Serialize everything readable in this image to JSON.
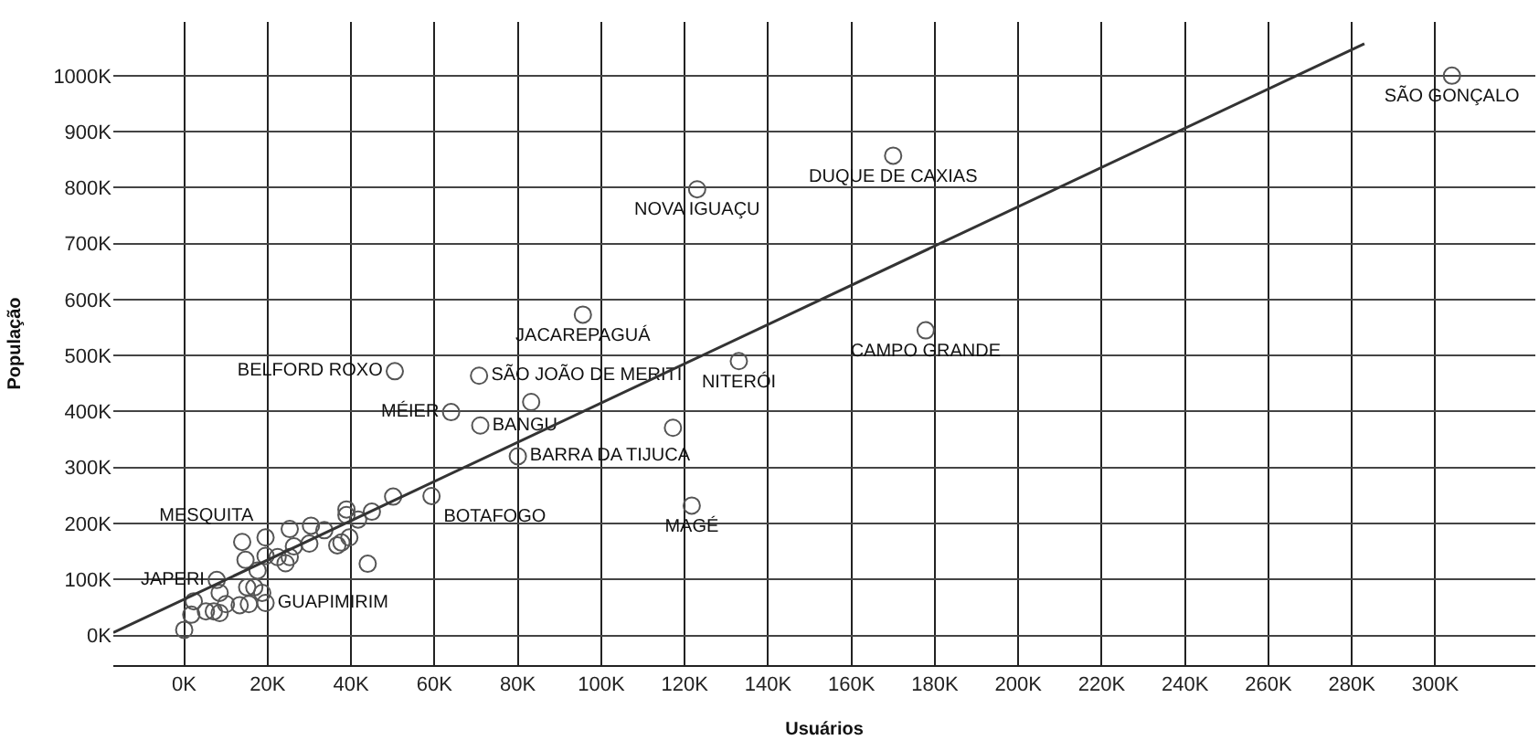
{
  "chart_data": {
    "type": "scatter",
    "xlabel": "Usuários",
    "ylabel": "População",
    "xlim": [
      -17000,
      324000
    ],
    "ylim": [
      -53000,
      1096000
    ],
    "xticks": [
      {
        "value": 0,
        "label": "0K"
      },
      {
        "value": 20000,
        "label": "20K"
      },
      {
        "value": 40000,
        "label": "40K"
      },
      {
        "value": 60000,
        "label": "60K"
      },
      {
        "value": 80000,
        "label": "80K"
      },
      {
        "value": 100000,
        "label": "100K"
      },
      {
        "value": 120000,
        "label": "120K"
      },
      {
        "value": 140000,
        "label": "140K"
      },
      {
        "value": 160000,
        "label": "160K"
      },
      {
        "value": 180000,
        "label": "180K"
      },
      {
        "value": 200000,
        "label": "200K"
      },
      {
        "value": 220000,
        "label": "220K"
      },
      {
        "value": 240000,
        "label": "240K"
      },
      {
        "value": 260000,
        "label": "260K"
      },
      {
        "value": 280000,
        "label": "280K"
      },
      {
        "value": 300000,
        "label": "300K"
      }
    ],
    "yticks": [
      {
        "value": 0,
        "label": "0K"
      },
      {
        "value": 100000,
        "label": "100K"
      },
      {
        "value": 200000,
        "label": "200K"
      },
      {
        "value": 300000,
        "label": "300K"
      },
      {
        "value": 400000,
        "label": "400K"
      },
      {
        "value": 500000,
        "label": "500K"
      },
      {
        "value": 600000,
        "label": "600K"
      },
      {
        "value": 700000,
        "label": "700K"
      },
      {
        "value": 800000,
        "label": "800K"
      },
      {
        "value": 900000,
        "label": "900K"
      },
      {
        "value": 1000000,
        "label": "1000K"
      }
    ],
    "grid": true,
    "marker": "circle",
    "series": [
      {
        "color": "#555555",
        "value_labels": [
          "SÃO GONÇALO",
          "DUQUE DE CAXIAS",
          "NOVA IGUAÇU",
          "JACAREPAGUÁ",
          "CAMPO GRANDE",
          "NITERÓI",
          "BELFORD ROXO",
          "SÃO JOÃO DE MERITI",
          null,
          "MÉIER",
          "BANGU",
          null,
          "BARRA DA TIJUCA",
          "MAGÉ",
          null,
          "BOTAFOGO",
          null,
          null,
          null,
          null,
          null,
          null,
          null,
          null,
          null,
          null,
          null,
          null,
          null,
          null,
          null,
          null,
          null,
          "MESQUITA",
          null,
          null,
          null,
          null,
          null,
          null,
          null,
          "GUAPIMIRIM",
          null,
          null,
          "JAPERI",
          null,
          null,
          null,
          null,
          null,
          null,
          null
        ],
        "x": [
          304000,
          170000,
          123000,
          95600,
          177800,
          133000,
          50500,
          70700,
          83200,
          64000,
          71000,
          117200,
          80000,
          121700,
          0,
          59300,
          50100,
          45000,
          38900,
          38900,
          41700,
          39600,
          37700,
          36700,
          44000,
          33600,
          30400,
          30000,
          25300,
          26300,
          24300,
          25300,
          22400,
          19500,
          19500,
          13900,
          14700,
          17600,
          15100,
          16800,
          18700,
          19500,
          15500,
          13300,
          7800,
          8500,
          10000,
          8500,
          7100,
          5200,
          2300,
          1700
        ],
        "values": [
          1000000,
          857000,
          797000,
          573000,
          545000,
          490000,
          472000,
          464000,
          417000,
          399000,
          375000,
          371000,
          320000,
          232000,
          10000,
          249000,
          248000,
          221000,
          225000,
          215000,
          207000,
          175000,
          166000,
          161000,
          128000,
          188000,
          196000,
          164000,
          190000,
          159000,
          129000,
          140000,
          140000,
          175000,
          142000,
          167000,
          135000,
          116000,
          86000,
          86000,
          76000,
          58000,
          56000,
          54000,
          99000,
          76000,
          56000,
          40000,
          43000,
          43000,
          61000,
          37000
        ]
      },
      {
        "type": "line",
        "color": "#333333",
        "x": [
          -17000,
          283000
        ],
        "values": [
          5000,
          1057000
        ],
        "marker": "none"
      }
    ]
  }
}
